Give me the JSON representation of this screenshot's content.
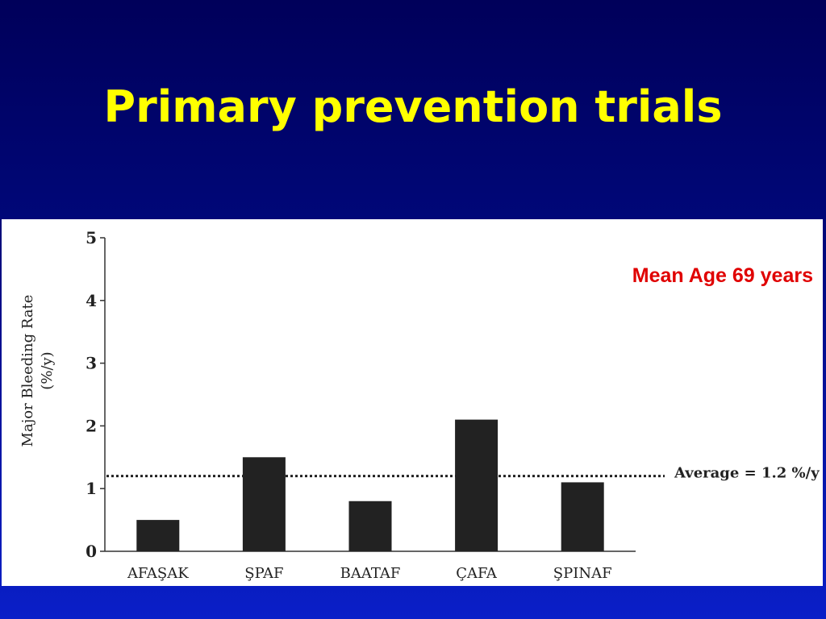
{
  "slide": {
    "title": "Primary prevention trials",
    "note": "Mean Age 69 years"
  },
  "chart_data": {
    "type": "bar",
    "categories": [
      "AFAŞAK",
      "ŞPAF",
      "BAATAF",
      "ÇAFA",
      "ŞPINAF"
    ],
    "values": [
      0.5,
      1.5,
      0.8,
      2.1,
      1.1
    ],
    "ylabel": "Major Bleeding Rate",
    "ylabel_unit": "(%/y)",
    "ylim": [
      0,
      5
    ],
    "yticks": [
      "0",
      "1",
      "2",
      "3",
      "4",
      "5"
    ],
    "reference_line": {
      "value": 1.2,
      "label": "Average = 1.2 %/y",
      "style": "dotted"
    },
    "grid": false,
    "bar_color": "#222222"
  }
}
